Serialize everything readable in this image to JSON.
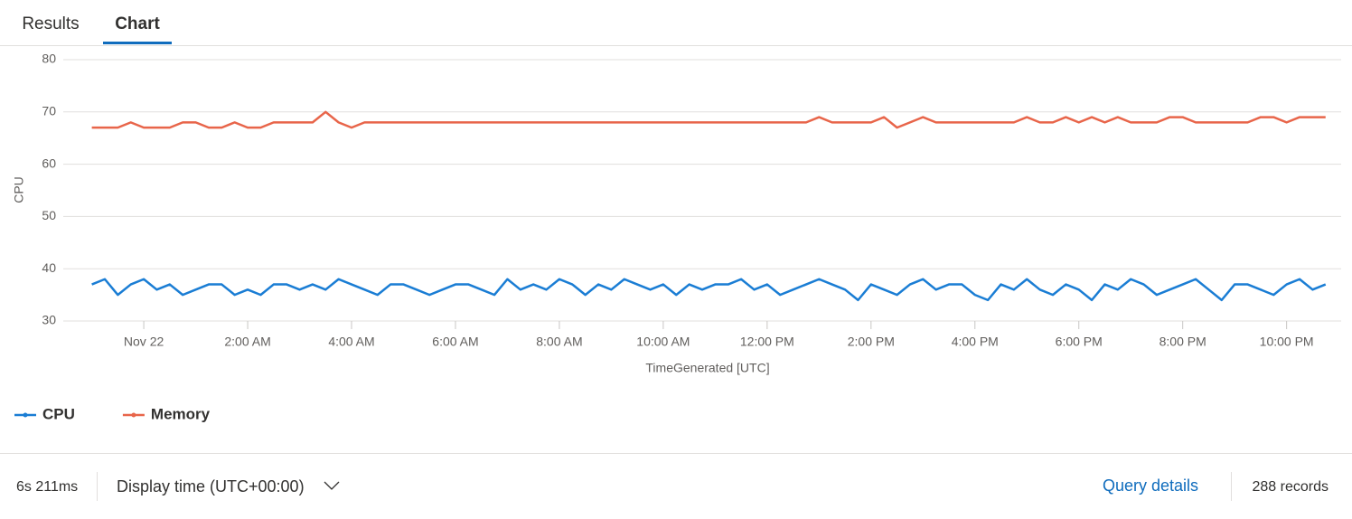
{
  "tabs": [
    "Results",
    "Chart"
  ],
  "chart_data": {
    "type": "line",
    "ylabel": "CPU",
    "xlabel": "TimeGenerated [UTC]",
    "x": [
      -1,
      -0.75,
      -0.5,
      -0.25,
      0,
      0.25,
      0.5,
      0.75,
      1,
      1.25,
      1.5,
      1.75,
      2,
      2.25,
      2.5,
      2.75,
      3,
      3.25,
      3.5,
      3.75,
      4,
      4.25,
      4.5,
      4.75,
      5,
      5.25,
      5.5,
      5.75,
      6,
      6.25,
      6.5,
      6.75,
      7,
      7.25,
      7.5,
      7.75,
      8,
      8.25,
      8.5,
      8.75,
      9,
      9.25,
      9.5,
      9.75,
      10,
      10.25,
      10.5,
      10.75,
      11,
      11.25,
      11.5,
      11.75,
      12,
      12.25,
      12.5,
      12.75,
      13,
      13.25,
      13.5,
      13.75,
      14,
      14.25,
      14.5,
      14.75,
      15,
      15.25,
      15.5,
      15.75,
      16,
      16.25,
      16.5,
      16.75,
      17,
      17.25,
      17.5,
      17.75,
      18,
      18.25,
      18.5,
      18.75,
      19,
      19.25,
      19.5,
      19.75,
      20,
      20.25,
      20.5,
      20.75,
      21,
      21.25,
      21.5,
      21.75,
      22,
      22.25,
      22.5,
      22.75
    ],
    "series": [
      {
        "name": "CPU",
        "color": "#1a7dd4",
        "values": [
          37,
          38,
          35,
          37,
          38,
          36,
          37,
          35,
          36,
          37,
          37,
          35,
          36,
          35,
          37,
          37,
          36,
          37,
          36,
          38,
          37,
          36,
          35,
          37,
          37,
          36,
          35,
          36,
          37,
          37,
          36,
          35,
          38,
          36,
          37,
          36,
          38,
          37,
          35,
          37,
          36,
          38,
          37,
          36,
          37,
          35,
          37,
          36,
          37,
          37,
          38,
          36,
          37,
          35,
          36,
          37,
          38,
          37,
          36,
          34,
          37,
          36,
          35,
          37,
          38,
          36,
          37,
          37,
          35,
          34,
          37,
          36,
          38,
          36,
          35,
          37,
          36,
          34,
          37,
          36,
          38,
          37,
          35,
          36,
          37,
          38,
          36,
          34,
          37,
          37,
          36,
          35,
          37,
          38,
          36,
          37
        ]
      },
      {
        "name": "Memory",
        "color": "#e8654a",
        "values": [
          67,
          67,
          67,
          68,
          67,
          67,
          67,
          68,
          68,
          67,
          67,
          68,
          67,
          67,
          68,
          68,
          68,
          68,
          70,
          68,
          67,
          68,
          68,
          68,
          68,
          68,
          68,
          68,
          68,
          68,
          68,
          68,
          68,
          68,
          68,
          68,
          68,
          68,
          68,
          68,
          68,
          68,
          68,
          68,
          68,
          68,
          68,
          68,
          68,
          68,
          68,
          68,
          68,
          68,
          68,
          68,
          69,
          68,
          68,
          68,
          68,
          69,
          67,
          68,
          69,
          68,
          68,
          68,
          68,
          68,
          68,
          68,
          69,
          68,
          68,
          69,
          68,
          69,
          68,
          69,
          68,
          68,
          68,
          69,
          69,
          68,
          68,
          68,
          68,
          68,
          69,
          69,
          68,
          69,
          69,
          69
        ]
      }
    ],
    "xlim": [
      -1.55,
      23.05
    ],
    "xticks": [
      {
        "value": 0,
        "label": "Nov 22"
      },
      {
        "value": 2,
        "label": "2:00 AM"
      },
      {
        "value": 4,
        "label": "4:00 AM"
      },
      {
        "value": 6,
        "label": "6:00 AM"
      },
      {
        "value": 8,
        "label": "8:00 AM"
      },
      {
        "value": 10,
        "label": "10:00 AM"
      },
      {
        "value": 12,
        "label": "12:00 PM"
      },
      {
        "value": 14,
        "label": "2:00 PM"
      },
      {
        "value": 16,
        "label": "4:00 PM"
      },
      {
        "value": 18,
        "label": "6:00 PM"
      },
      {
        "value": 20,
        "label": "8:00 PM"
      },
      {
        "value": 22,
        "label": "10:00 PM"
      }
    ],
    "ylim": [
      30,
      80
    ],
    "yticks": [
      30,
      40,
      50,
      60,
      70,
      80
    ],
    "grid": true
  },
  "footer": {
    "duration": "6s 211ms",
    "display_time": "Display time (UTC+00:00)",
    "query_details": "Query details",
    "records": "288 records"
  }
}
